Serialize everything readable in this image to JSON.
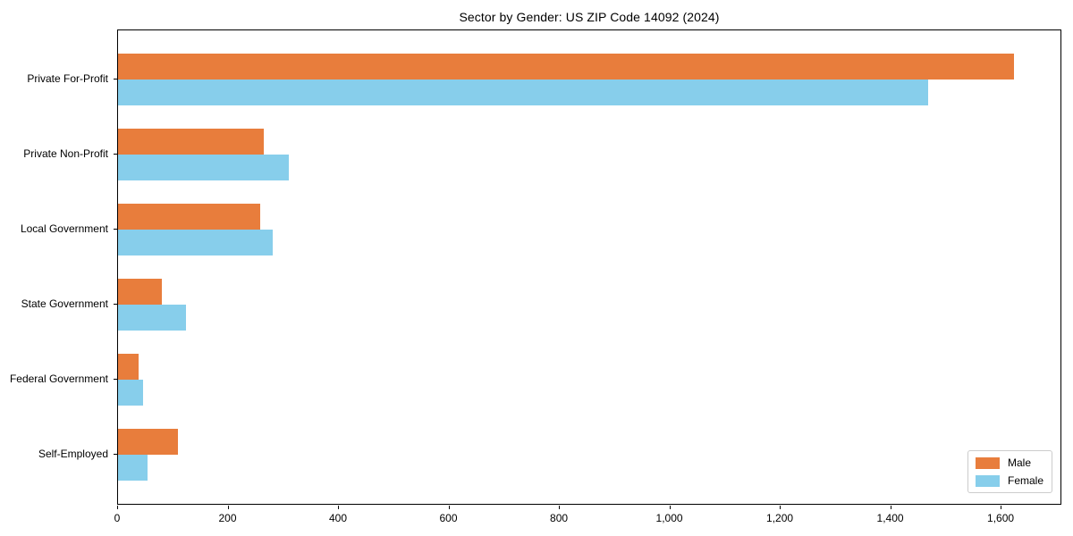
{
  "title": "Sector by Gender: US ZIP Code 14092 (2024)",
  "colors": {
    "male": "#E87D3C",
    "female": "#87CEEB",
    "axis": "#000000",
    "legend_border": "#CCCCCC",
    "background": "#FFFFFF"
  },
  "chart_data": {
    "type": "bar",
    "orientation": "horizontal",
    "title": "Sector by Gender: US ZIP Code 14092 (2024)",
    "xlabel": "",
    "ylabel": "",
    "categories": [
      "Private For-Profit",
      "Private Non-Profit",
      "Local Government",
      "State Government",
      "Federal Government",
      "Self-Employed"
    ],
    "series": [
      {
        "name": "Male",
        "color": "#E87D3C",
        "values": [
          1625,
          265,
          258,
          79,
          38,
          109
        ]
      },
      {
        "name": "Female",
        "color": "#87CEEB",
        "values": [
          1470,
          310,
          281,
          123,
          46,
          53
        ]
      }
    ],
    "xlim": [
      0,
      1710
    ],
    "xticks": [
      0,
      200,
      400,
      600,
      800,
      1000,
      1200,
      1400,
      1600
    ],
    "xtick_labels": [
      "0",
      "200",
      "400",
      "600",
      "800",
      "1,000",
      "1,200",
      "1,400",
      "1,600"
    ],
    "grid": false,
    "legend_position": "lower right"
  },
  "legend": {
    "items": [
      {
        "label": "Male",
        "color": "#E87D3C"
      },
      {
        "label": "Female",
        "color": "#87CEEB"
      }
    ]
  }
}
